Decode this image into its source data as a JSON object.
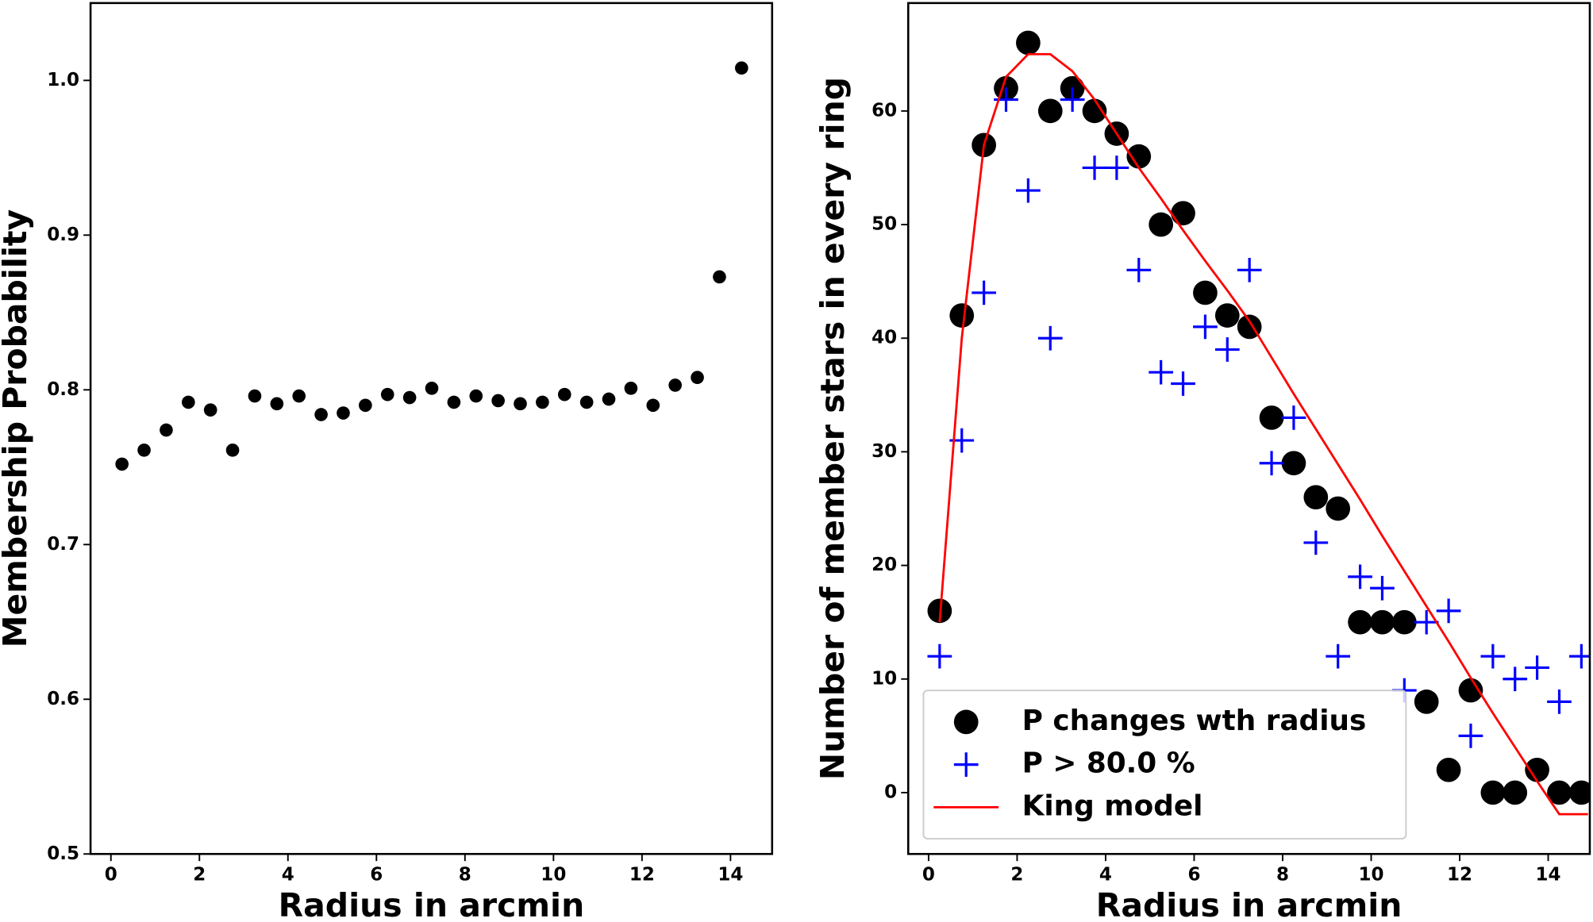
{
  "chart_data": [
    {
      "type": "scatter",
      "xlabel": "Radius in arcmin",
      "ylabel": "Membership Probability",
      "xlim": [
        -0.46,
        14.94
      ],
      "ylim": [
        0.5,
        1.05
      ],
      "xticks": [
        0,
        2,
        4,
        6,
        8,
        10,
        12,
        14
      ],
      "yticks": [
        0.5,
        0.6,
        0.7,
        0.8,
        0.9,
        {
          "value": 1,
          "label": "1.0"
        }
      ],
      "series": [
        {
          "marker": "o",
          "color": "#000000",
          "x": [
            0.25,
            0.75,
            1.25,
            1.75,
            2.25,
            2.75,
            3.25,
            3.75,
            4.25,
            4.75,
            5.25,
            5.75,
            6.25,
            6.75,
            7.25,
            7.75,
            8.25,
            8.75,
            9.25,
            9.75,
            10.25,
            10.75,
            11.25,
            11.75,
            12.25,
            12.75,
            13.25,
            13.75,
            14.25
          ],
          "values": [
            0.752,
            0.761,
            0.774,
            0.792,
            0.787,
            0.761,
            0.796,
            0.791,
            0.796,
            0.784,
            0.785,
            0.79,
            0.797,
            0.795,
            0.801,
            0.792,
            0.796,
            0.793,
            0.791,
            0.792,
            0.797,
            0.792,
            0.794,
            0.801,
            0.79,
            0.803,
            0.808,
            0.873,
            1.008
          ]
        }
      ]
    },
    {
      "type": "scatter",
      "xlabel": "Radius in arcmin",
      "ylabel": "Number of member stars in every ring",
      "xlim": [
        -0.46,
        14.94
      ],
      "ylim": [
        -5.4,
        69.5
      ],
      "xticks": [
        0,
        2,
        4,
        6,
        8,
        10,
        12,
        14
      ],
      "yticks": [
        0,
        10,
        20,
        30,
        40,
        50,
        60
      ],
      "legend": "lower left",
      "series": [
        {
          "name": "P changes wth radius",
          "marker": "o",
          "color": "#000000",
          "x": [
            0.25,
            0.75,
            1.25,
            1.75,
            2.25,
            2.75,
            3.25,
            3.75,
            4.25,
            4.75,
            5.25,
            5.75,
            6.25,
            6.75,
            7.25,
            7.75,
            8.25,
            8.75,
            9.25,
            9.75,
            10.25,
            10.75,
            11.25,
            11.75,
            12.25,
            12.75,
            13.25,
            13.75,
            14.25,
            14.75
          ],
          "values": [
            16,
            42,
            57,
            62,
            66,
            60,
            62,
            60,
            58,
            56,
            50,
            51,
            44,
            42,
            41,
            33,
            29,
            26,
            25,
            15,
            15,
            15,
            8,
            2,
            9,
            0,
            0,
            2,
            0,
            0
          ]
        },
        {
          "name": "P > 80.0 %",
          "marker": "+",
          "color": "#0000ff",
          "x": [
            0.25,
            0.75,
            1.25,
            1.75,
            2.25,
            2.75,
            3.25,
            3.75,
            4.25,
            4.75,
            5.25,
            5.75,
            6.25,
            6.75,
            7.25,
            7.75,
            8.25,
            8.75,
            9.25,
            9.75,
            10.25,
            10.75,
            11.25,
            11.75,
            12.25,
            12.75,
            13.25,
            13.75,
            14.25,
            14.75
          ],
          "values": [
            12,
            31,
            44,
            61,
            53,
            40,
            61,
            55,
            55,
            46,
            37,
            36,
            41,
            39,
            46,
            29,
            33,
            22,
            12,
            19,
            18,
            9,
            15,
            16,
            5,
            12,
            10,
            11,
            8,
            12
          ]
        },
        {
          "name": "King model",
          "type": "line",
          "color": "#ff0000",
          "x": [
            0.25,
            0.75,
            1.25,
            1.75,
            2.25,
            2.75,
            3.25,
            3.75,
            4.25,
            4.75,
            5.25,
            5.75,
            6.25,
            6.75,
            7.25,
            7.75,
            8.25,
            8.75,
            9.25,
            9.75,
            10.25,
            10.75,
            11.25,
            11.75,
            12.25,
            12.75,
            13.25,
            13.75,
            14.25,
            14.9
          ],
          "values": [
            15,
            40,
            57,
            63,
            65,
            65,
            63.5,
            61,
            58,
            55,
            52.3,
            49.5,
            46.8,
            44.2,
            41.5,
            38.3,
            35.1,
            32,
            28.9,
            25.8,
            22.6,
            19.5,
            16.4,
            13.3,
            10.1,
            7,
            4,
            1,
            -1.9,
            -1.9
          ]
        }
      ]
    }
  ]
}
